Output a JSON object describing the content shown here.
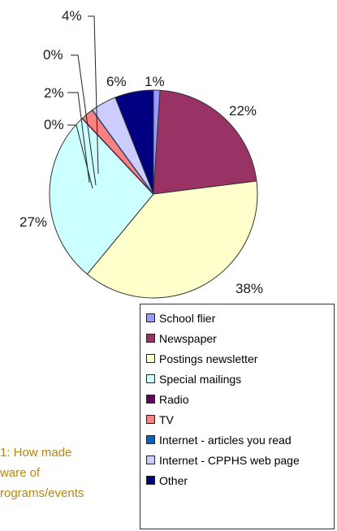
{
  "chart_data": {
    "type": "pie",
    "categories": [
      "School flier",
      "Newspaper",
      "Postings newsletter",
      "Special mailings",
      "Radio",
      "TV",
      "Internet - articles you read",
      "Internet - CPPHS web page",
      "Other"
    ],
    "values": [
      1,
      22,
      38,
      27,
      0,
      2,
      0,
      4,
      6
    ],
    "value_labels": [
      "1%",
      "22%",
      "38%",
      "27%",
      "0%",
      "2%",
      "0%",
      "4%",
      "6%"
    ],
    "colors": [
      "#9999ff",
      "#993366",
      "#ffffcc",
      "#ccffff",
      "#660066",
      "#ff8080",
      "#0066cc",
      "#ccccff",
      "#000080"
    ],
    "legend_placement": "bottom-right"
  },
  "caption_lines": [
    "1: How made",
    "ware of",
    "rograms/events"
  ]
}
